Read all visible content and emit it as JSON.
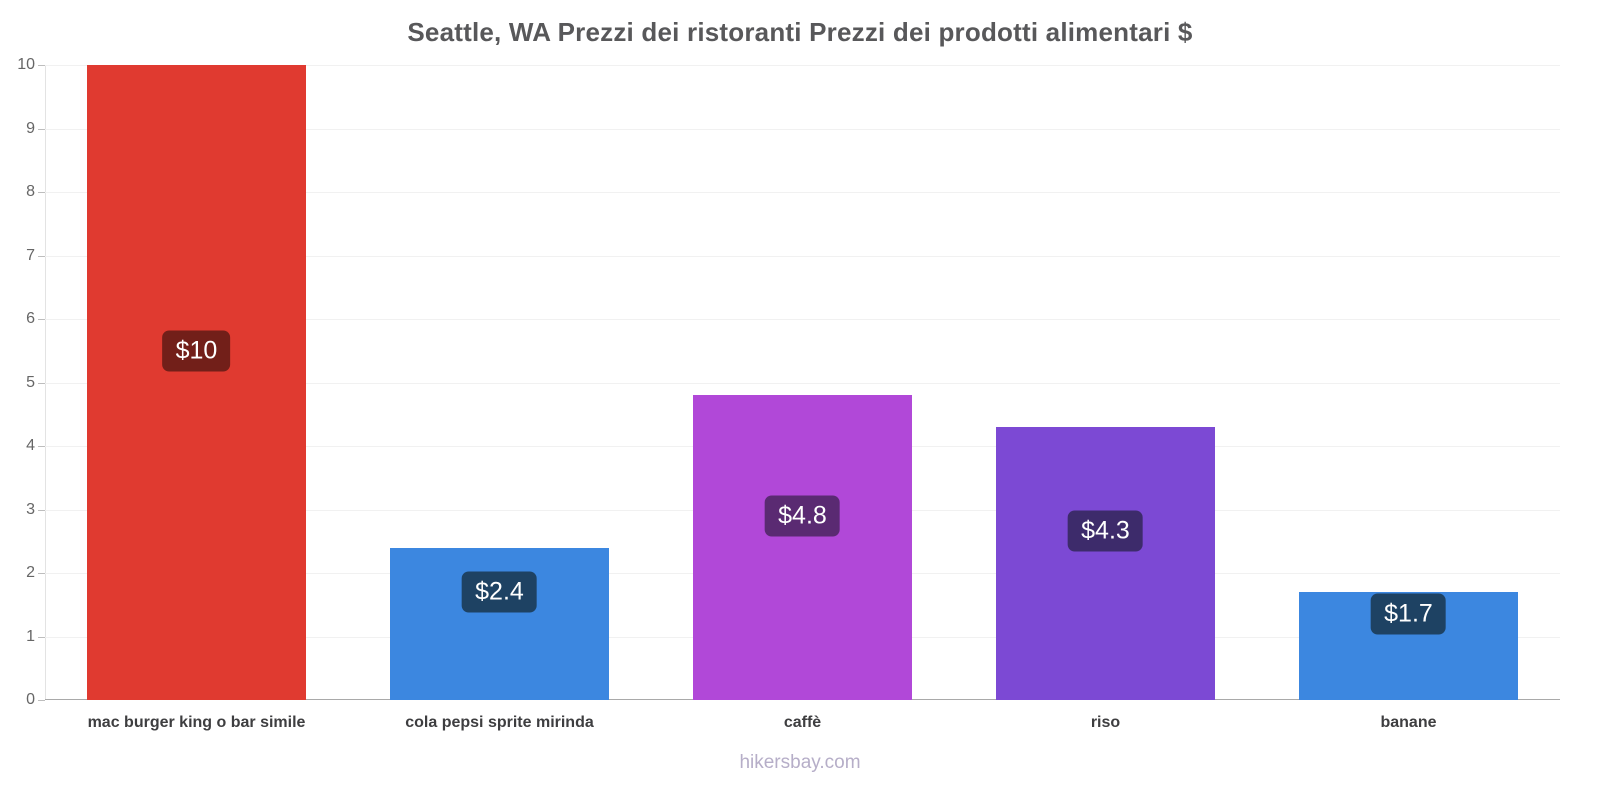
{
  "chart_data": {
    "type": "bar",
    "title": "Seattle, WA Prezzi dei ristoranti Prezzi dei prodotti alimentari $",
    "xlabel": "",
    "ylabel": "",
    "categories": [
      "mac burger king o bar simile",
      "cola pepsi sprite mirinda",
      "caffè",
      "riso",
      "banane"
    ],
    "values": [
      10,
      2.4,
      4.8,
      4.3,
      1.7
    ],
    "value_labels": [
      "$10",
      "$2.4",
      "$4.8",
      "$4.3",
      "$1.7"
    ],
    "bar_colors": [
      "#e03a30",
      "#3c87e0",
      "#b148d8",
      "#7c49d4",
      "#3c87e0"
    ],
    "badge_colors": [
      "#721f19",
      "#1e4263",
      "#5a2a72",
      "#3d2b6b",
      "#1e4263"
    ],
    "ylim": [
      0,
      10
    ],
    "yticks": [
      0,
      1,
      2,
      3,
      4,
      5,
      6,
      7,
      8,
      9,
      10
    ],
    "grid": true,
    "legend": "none",
    "footer": "hikersbay.com"
  }
}
